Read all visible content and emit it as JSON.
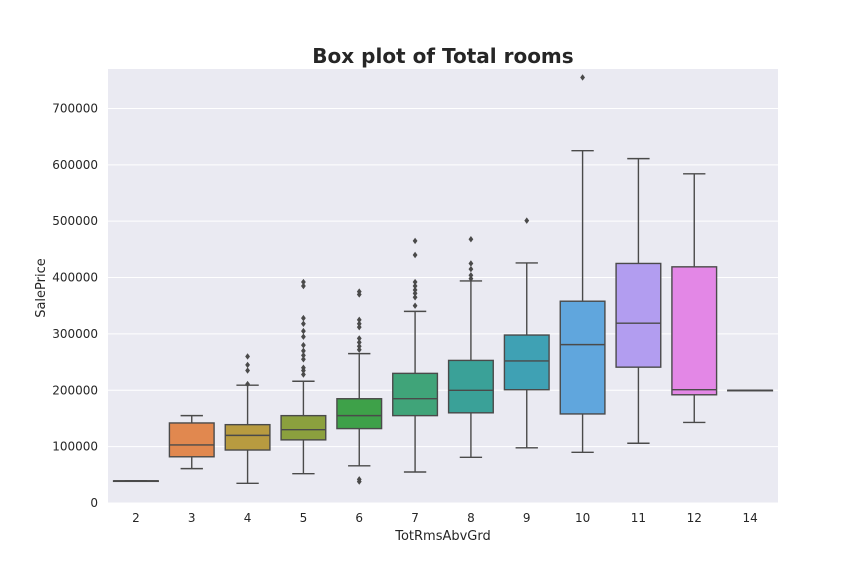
{
  "chart_data": {
    "type": "box",
    "title": "Box plot of Total rooms",
    "xlabel": "TotRmsAbvGrd",
    "ylabel": "SalePrice",
    "ylim": [
      0,
      770000
    ],
    "yticks": [
      0,
      100000,
      200000,
      300000,
      400000,
      500000,
      600000,
      700000
    ],
    "grid": true,
    "categories": [
      "2",
      "3",
      "4",
      "5",
      "6",
      "7",
      "8",
      "9",
      "10",
      "11",
      "12",
      "14"
    ],
    "colors": [
      "#4c72b0",
      "#e1884f",
      "#b89b40",
      "#8ba03e",
      "#3ea149",
      "#40a479",
      "#3aa198",
      "#3fa1b4",
      "#60a6dd",
      "#b29df0",
      "#e387e6",
      "#f28cc0"
    ],
    "boxes": [
      {
        "q1": 39300,
        "median": 39300,
        "q3": 39300,
        "whislo": 39300,
        "whishi": 39300,
        "fliers": []
      },
      {
        "q1": 82000,
        "median": 103000,
        "q3": 142000,
        "whislo": 61000,
        "whishi": 155000,
        "fliers": []
      },
      {
        "q1": 94000,
        "median": 120000,
        "q3": 139000,
        "whislo": 35000,
        "whishi": 209000,
        "fliers": [
          211000,
          235000,
          245000,
          260000
        ]
      },
      {
        "q1": 112000,
        "median": 130000,
        "q3": 155000,
        "whislo": 52000,
        "whishi": 216000,
        "fliers": [
          228000,
          235000,
          240000,
          255000,
          262000,
          270000,
          280000,
          295000,
          305000,
          318000,
          328000,
          385000,
          392000
        ]
      },
      {
        "q1": 132000,
        "median": 155000,
        "q3": 185000,
        "whislo": 66000,
        "whishi": 265000,
        "fliers": [
          38000,
          42000,
          272000,
          278000,
          285000,
          292000,
          312000,
          318000,
          325000,
          370000,
          375000
        ]
      },
      {
        "q1": 155000,
        "median": 185000,
        "q3": 230000,
        "whislo": 55000,
        "whishi": 340000,
        "fliers": [
          350000,
          365000,
          372000,
          378000,
          385000,
          392000,
          440000,
          465000
        ]
      },
      {
        "q1": 160000,
        "median": 200000,
        "q3": 253000,
        "whislo": 81000,
        "whishi": 394000,
        "fliers": [
          398000,
          404000,
          415000,
          425000,
          468000
        ]
      },
      {
        "q1": 201000,
        "median": 252000,
        "q3": 298000,
        "whislo": 98000,
        "whishi": 426000,
        "fliers": [
          501000
        ]
      },
      {
        "q1": 158000,
        "median": 281000,
        "q3": 358000,
        "whislo": 90000,
        "whishi": 625000,
        "fliers": [
          755000
        ]
      },
      {
        "q1": 241000,
        "median": 319000,
        "q3": 425000,
        "whislo": 106000,
        "whishi": 611000,
        "fliers": []
      },
      {
        "q1": 192000,
        "median": 201000,
        "q3": 419000,
        "whislo": 143000,
        "whishi": 584000,
        "fliers": []
      },
      {
        "q1": 200000,
        "median": 200000,
        "q3": 200000,
        "whislo": 200000,
        "whishi": 200000,
        "fliers": []
      }
    ]
  }
}
